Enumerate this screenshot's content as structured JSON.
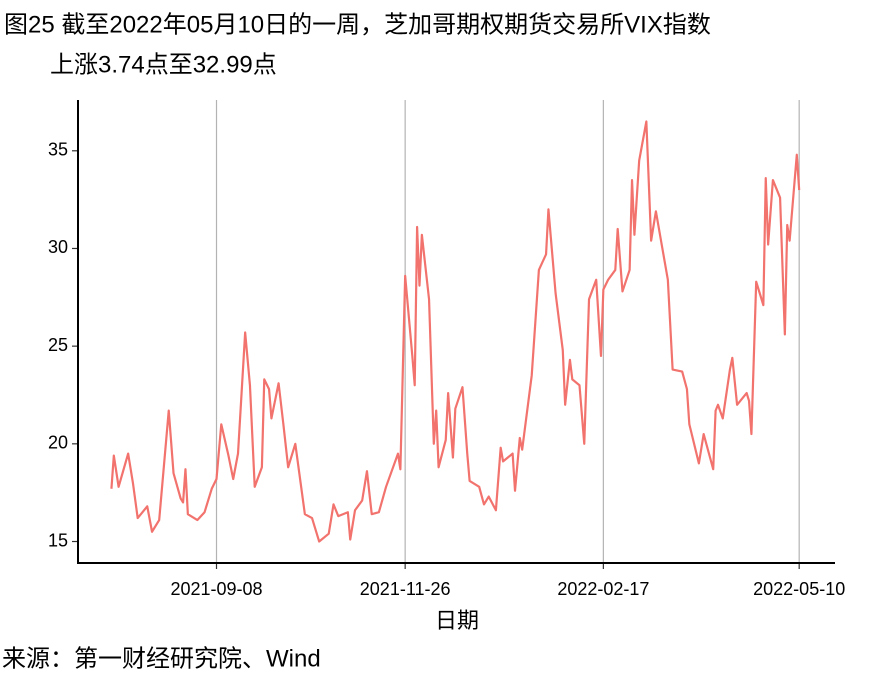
{
  "chart_data": {
    "type": "line",
    "title": [
      "图25  截至2022年05月10日的一周，芝加哥期权期货交易所VIX指数",
      "上涨3.74点至32.99点"
    ],
    "xlabel": "日期",
    "source": "来源：第一财经研究院、Wind",
    "xlim": [
      "2021-07-12",
      "2022-05-25"
    ],
    "xticks": [
      "2021-09-08",
      "2021-11-26",
      "2022-02-17",
      "2022-05-10"
    ],
    "ylim": [
      13.9,
      37.6
    ],
    "yticks": [
      15,
      20,
      25,
      30,
      35
    ],
    "grid": "x",
    "x": [
      "2021-07-26",
      "2021-07-27",
      "2021-07-29",
      "2021-08-02",
      "2021-08-04",
      "2021-08-06",
      "2021-08-10",
      "2021-08-12",
      "2021-08-15",
      "2021-08-19",
      "2021-08-21",
      "2021-08-24",
      "2021-08-25",
      "2021-08-26",
      "2021-08-27",
      "2021-08-31",
      "2021-09-03",
      "2021-09-06",
      "2021-09-08",
      "2021-09-10",
      "2021-09-13",
      "2021-09-15",
      "2021-09-17",
      "2021-09-20",
      "2021-09-22",
      "2021-09-24",
      "2021-09-27",
      "2021-09-28",
      "2021-09-30",
      "2021-10-01",
      "2021-10-04",
      "2021-10-06",
      "2021-10-08",
      "2021-10-11",
      "2021-10-15",
      "2021-10-18",
      "2021-10-21",
      "2021-10-25",
      "2021-10-27",
      "2021-10-29",
      "2021-11-02",
      "2021-11-03",
      "2021-11-05",
      "2021-11-08",
      "2021-11-10",
      "2021-11-12",
      "2021-11-15",
      "2021-11-18",
      "2021-11-23",
      "2021-11-24",
      "2021-11-26",
      "2021-11-29",
      "2021-11-30",
      "2021-12-01",
      "2021-12-02",
      "2021-12-03",
      "2021-12-06",
      "2021-12-08",
      "2021-12-09",
      "2021-12-10",
      "2021-12-13",
      "2021-12-14",
      "2021-12-16",
      "2021-12-17",
      "2021-12-20",
      "2021-12-22",
      "2021-12-23",
      "2021-12-27",
      "2021-12-29",
      "2021-12-31",
      "2022-01-03",
      "2022-01-05",
      "2022-01-06",
      "2022-01-10",
      "2022-01-11",
      "2022-01-13",
      "2022-01-14",
      "2022-01-18",
      "2022-01-21",
      "2022-01-24",
      "2022-01-25",
      "2022-01-28",
      "2022-01-31",
      "2022-02-01",
      "2022-02-03",
      "2022-02-04",
      "2022-02-07",
      "2022-02-09",
      "2022-02-11",
      "2022-02-14",
      "2022-02-16",
      "2022-02-17",
      "2022-02-19",
      "2022-02-22",
      "2022-02-23",
      "2022-02-25",
      "2022-02-28",
      "2022-03-01",
      "2022-03-02",
      "2022-03-04",
      "2022-03-07",
      "2022-03-09",
      "2022-03-11",
      "2022-03-16",
      "2022-03-18",
      "2022-03-22",
      "2022-03-24",
      "2022-03-25",
      "2022-03-29",
      "2022-03-31",
      "2022-04-04",
      "2022-04-05",
      "2022-04-06",
      "2022-04-08",
      "2022-04-11",
      "2022-04-12",
      "2022-04-14",
      "2022-04-18",
      "2022-04-19",
      "2022-04-20",
      "2022-04-22",
      "2022-04-25",
      "2022-04-26",
      "2022-04-27",
      "2022-04-29",
      "2022-05-02",
      "2022-05-04",
      "2022-05-05",
      "2022-05-06",
      "2022-05-09",
      "2022-05-10"
    ],
    "series": [
      {
        "name": "VIX",
        "color": "#f2736e",
        "values": [
          17.7,
          19.4,
          17.8,
          19.5,
          18.0,
          16.2,
          16.8,
          15.5,
          16.1,
          21.7,
          18.5,
          17.2,
          17.0,
          18.7,
          16.4,
          16.1,
          16.5,
          17.7,
          18.2,
          21.0,
          19.4,
          18.2,
          19.5,
          25.7,
          23.0,
          17.8,
          18.8,
          23.3,
          22.8,
          21.3,
          23.1,
          21.0,
          18.8,
          20.0,
          16.4,
          16.2,
          15.0,
          15.4,
          16.9,
          16.3,
          16.5,
          15.1,
          16.6,
          17.1,
          18.6,
          16.4,
          16.5,
          17.8,
          19.5,
          18.7,
          28.6,
          24.5,
          23.0,
          31.1,
          28.1,
          30.7,
          27.4,
          20.0,
          21.7,
          18.8,
          20.2,
          22.6,
          19.3,
          21.8,
          22.9,
          19.5,
          18.1,
          17.8,
          16.9,
          17.3,
          16.6,
          19.8,
          19.1,
          19.5,
          17.6,
          20.3,
          19.7,
          23.5,
          28.9,
          29.7,
          32.0,
          27.7,
          24.8,
          22.0,
          24.3,
          23.3,
          23.0,
          20.0,
          27.4,
          28.4,
          24.5,
          27.9,
          28.4,
          28.9,
          31.0,
          27.8,
          28.9,
          33.5,
          30.7,
          34.5,
          36.5,
          30.4,
          31.9,
          28.4,
          23.8,
          23.7,
          22.8,
          21.0,
          19.0,
          20.5,
          18.7,
          21.7,
          22.0,
          21.3,
          23.8,
          24.4,
          22.0,
          22.6,
          22.2,
          20.5,
          28.3,
          27.1,
          33.6,
          30.2,
          33.5,
          32.6,
          25.6,
          31.2,
          30.4,
          34.8,
          32.99
        ]
      }
    ]
  }
}
